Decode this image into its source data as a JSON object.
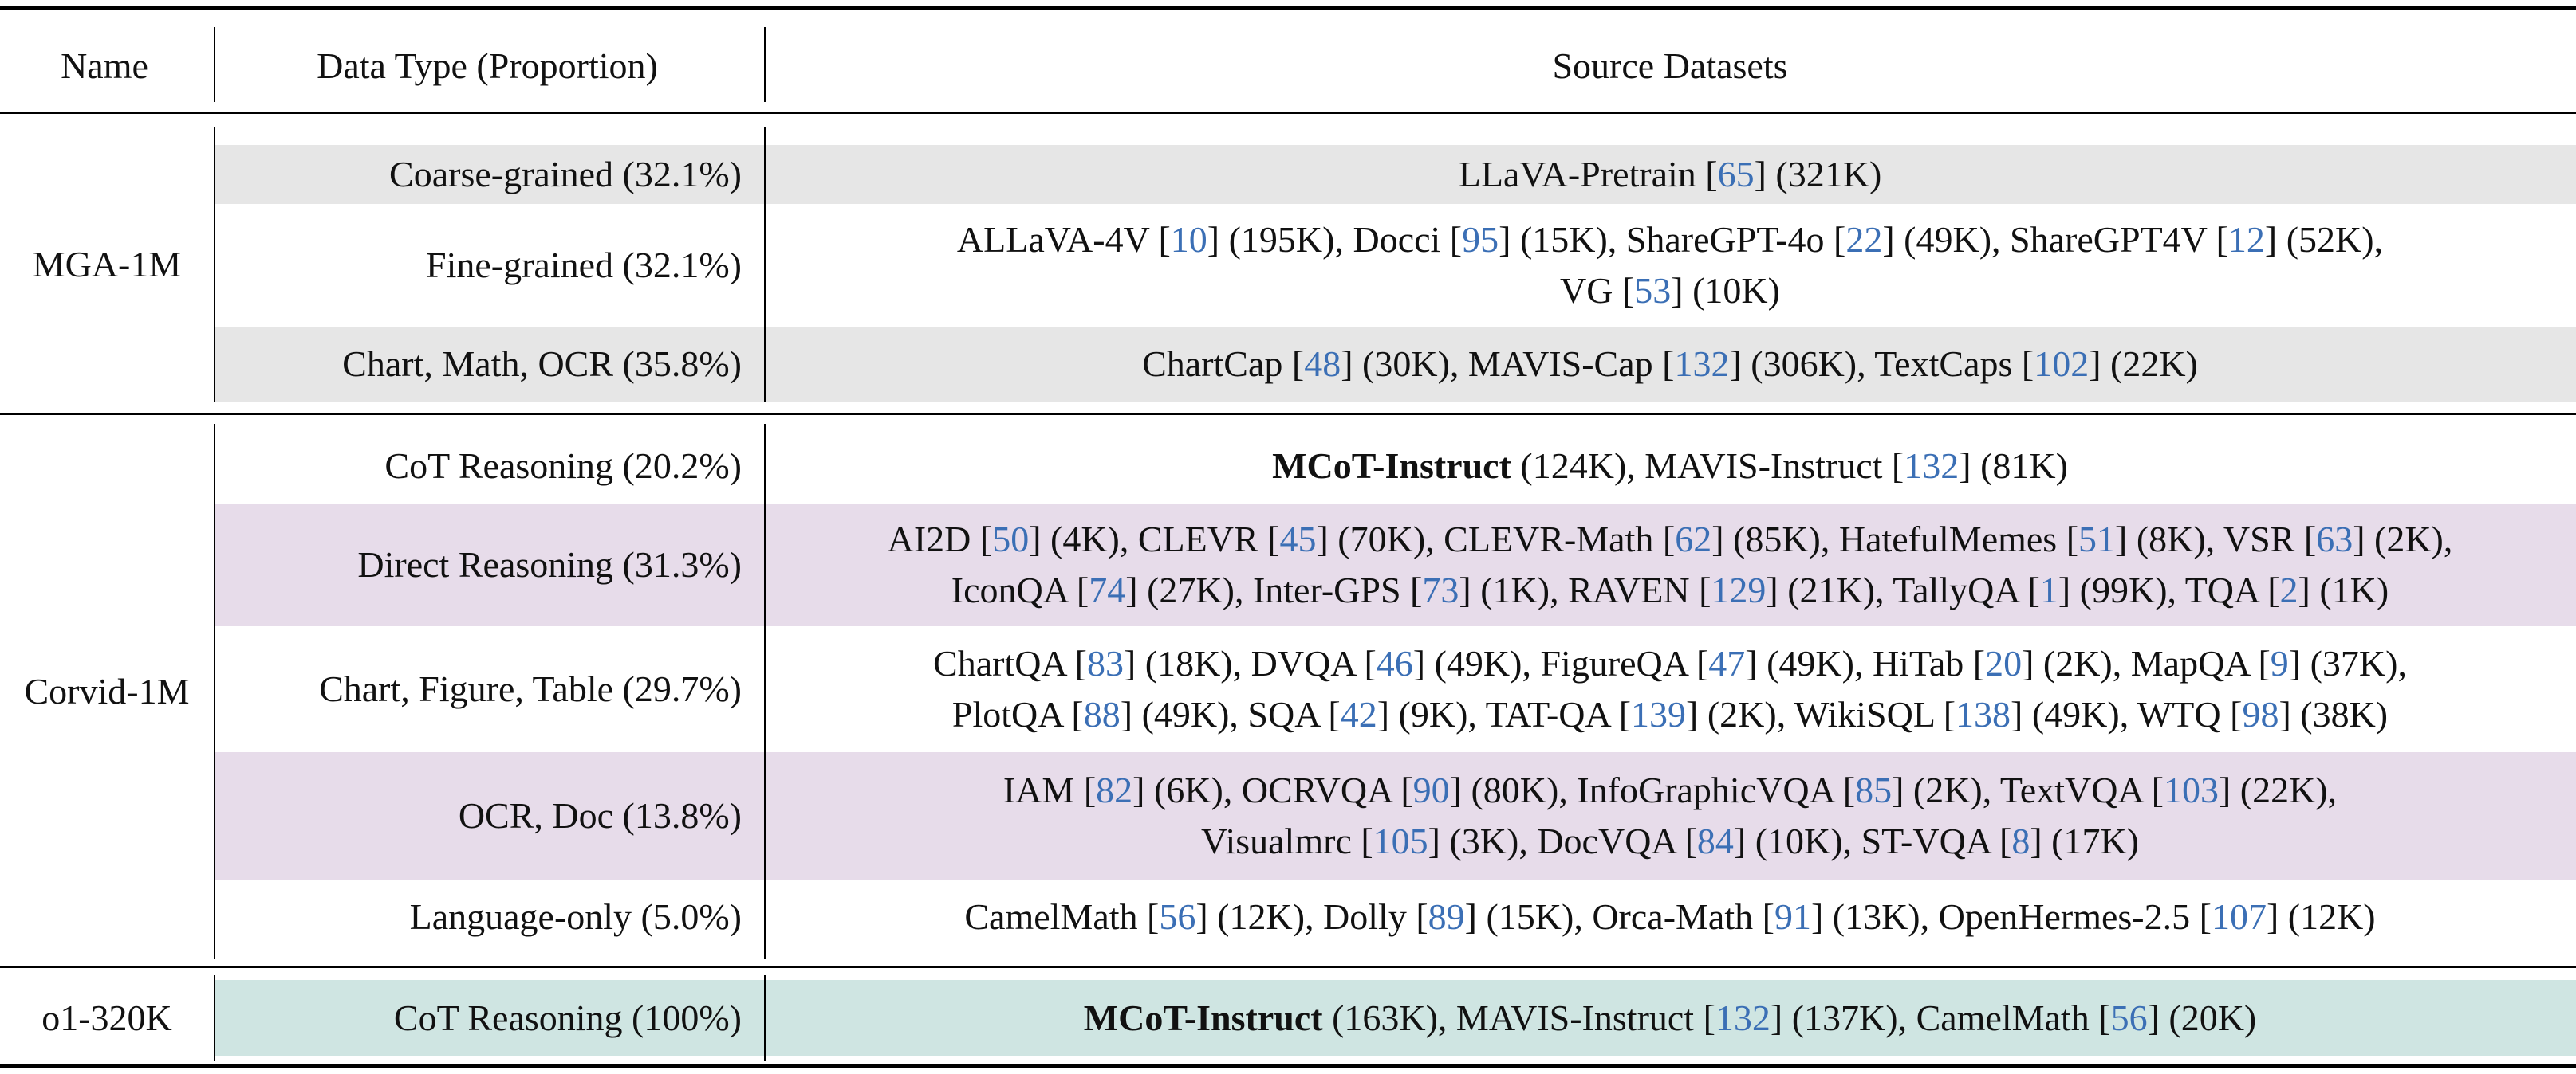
{
  "header": {
    "name": "Name",
    "data_type": "Data Type (Proportion)",
    "source": "Source Datasets"
  },
  "colors": {
    "gray_band": "#e6e6e6",
    "purple_band": "#e7dcea",
    "teal_band": "#cfe5e2",
    "citation": "#3b6fb5"
  },
  "groups": [
    {
      "name": "MGA-1M",
      "rows": [
        {
          "type": "Coarse-grained (32.1%)",
          "band": "gray",
          "lines": [
            [
              {
                "t": "LLaVA-Pretrain ["
              },
              {
                "t": "65",
                "ref": true
              },
              {
                "t": "] (321K)"
              }
            ]
          ]
        },
        {
          "type": "Fine-grained (32.1%)",
          "band": "none",
          "lines": [
            [
              {
                "t": "ALLaVA-4V ["
              },
              {
                "t": "10",
                "ref": true
              },
              {
                "t": "] (195K), Docci ["
              },
              {
                "t": "95",
                "ref": true
              },
              {
                "t": "] (15K), ShareGPT-4o ["
              },
              {
                "t": "22",
                "ref": true
              },
              {
                "t": "] (49K), ShareGPT4V ["
              },
              {
                "t": "12",
                "ref": true
              },
              {
                "t": "] (52K),"
              }
            ],
            [
              {
                "t": "VG ["
              },
              {
                "t": "53",
                "ref": true
              },
              {
                "t": "] (10K)"
              }
            ]
          ]
        },
        {
          "type": "Chart, Math, OCR (35.8%)",
          "band": "gray",
          "lines": [
            [
              {
                "t": "ChartCap ["
              },
              {
                "t": "48",
                "ref": true
              },
              {
                "t": "] (30K), MAVIS-Cap ["
              },
              {
                "t": "132",
                "ref": true
              },
              {
                "t": "] (306K), TextCaps ["
              },
              {
                "t": "102",
                "ref": true
              },
              {
                "t": "] (22K)"
              }
            ]
          ]
        }
      ]
    },
    {
      "name": "Corvid-1M",
      "rows": [
        {
          "type": "CoT Reasoning (20.2%)",
          "band": "none",
          "lines": [
            [
              {
                "t": "MCoT-Instruct",
                "bold": true
              },
              {
                "t": " (124K), MAVIS-Instruct ["
              },
              {
                "t": "132",
                "ref": true
              },
              {
                "t": "] (81K)"
              }
            ]
          ]
        },
        {
          "type": "Direct Reasoning (31.3%)",
          "band": "purple",
          "lines": [
            [
              {
                "t": "AI2D ["
              },
              {
                "t": "50",
                "ref": true
              },
              {
                "t": "] (4K), CLEVR ["
              },
              {
                "t": "45",
                "ref": true
              },
              {
                "t": "] (70K), CLEVR-Math ["
              },
              {
                "t": "62",
                "ref": true
              },
              {
                "t": "] (85K), HatefulMemes ["
              },
              {
                "t": "51",
                "ref": true
              },
              {
                "t": "] (8K), VSR ["
              },
              {
                "t": "63",
                "ref": true
              },
              {
                "t": "] (2K),"
              }
            ],
            [
              {
                "t": "IconQA ["
              },
              {
                "t": "74",
                "ref": true
              },
              {
                "t": "] (27K), Inter-GPS ["
              },
              {
                "t": "73",
                "ref": true
              },
              {
                "t": "] (1K), RAVEN ["
              },
              {
                "t": "129",
                "ref": true
              },
              {
                "t": "] (21K), TallyQA ["
              },
              {
                "t": "1",
                "ref": true
              },
              {
                "t": "] (99K), TQA ["
              },
              {
                "t": "2",
                "ref": true
              },
              {
                "t": "] (1K)"
              }
            ]
          ]
        },
        {
          "type": "Chart, Figure, Table (29.7%)",
          "band": "none",
          "lines": [
            [
              {
                "t": "ChartQA ["
              },
              {
                "t": "83",
                "ref": true
              },
              {
                "t": "] (18K), DVQA ["
              },
              {
                "t": "46",
                "ref": true
              },
              {
                "t": "] (49K), FigureQA ["
              },
              {
                "t": "47",
                "ref": true
              },
              {
                "t": "] (49K), HiTab ["
              },
              {
                "t": "20",
                "ref": true
              },
              {
                "t": "] (2K), MapQA ["
              },
              {
                "t": "9",
                "ref": true
              },
              {
                "t": "] (37K),"
              }
            ],
            [
              {
                "t": "PlotQA ["
              },
              {
                "t": "88",
                "ref": true
              },
              {
                "t": "] (49K), SQA ["
              },
              {
                "t": "42",
                "ref": true
              },
              {
                "t": "] (9K), TAT-QA ["
              },
              {
                "t": "139",
                "ref": true
              },
              {
                "t": "] (2K), WikiSQL ["
              },
              {
                "t": "138",
                "ref": true
              },
              {
                "t": "] (49K), WTQ ["
              },
              {
                "t": "98",
                "ref": true
              },
              {
                "t": "] (38K)"
              }
            ]
          ]
        },
        {
          "type": "OCR, Doc (13.8%)",
          "band": "purple",
          "lines": [
            [
              {
                "t": "IAM ["
              },
              {
                "t": "82",
                "ref": true
              },
              {
                "t": "] (6K), OCRVQA ["
              },
              {
                "t": "90",
                "ref": true
              },
              {
                "t": "] (80K), InfoGraphicVQA ["
              },
              {
                "t": "85",
                "ref": true
              },
              {
                "t": "] (2K), TextVQA ["
              },
              {
                "t": "103",
                "ref": true
              },
              {
                "t": "] (22K),"
              }
            ],
            [
              {
                "t": "Visualmrc ["
              },
              {
                "t": "105",
                "ref": true
              },
              {
                "t": "] (3K), DocVQA ["
              },
              {
                "t": "84",
                "ref": true
              },
              {
                "t": "] (10K), ST-VQA ["
              },
              {
                "t": "8",
                "ref": true
              },
              {
                "t": "] (17K)"
              }
            ]
          ]
        },
        {
          "type": "Language-only (5.0%)",
          "band": "none",
          "lines": [
            [
              {
                "t": "CamelMath ["
              },
              {
                "t": "56",
                "ref": true
              },
              {
                "t": "] (12K), Dolly ["
              },
              {
                "t": "89",
                "ref": true
              },
              {
                "t": "] (15K), Orca-Math ["
              },
              {
                "t": "91",
                "ref": true
              },
              {
                "t": "] (13K), OpenHermes-2.5 ["
              },
              {
                "t": "107",
                "ref": true
              },
              {
                "t": "] (12K)"
              }
            ]
          ]
        }
      ]
    },
    {
      "name": "o1-320K",
      "rows": [
        {
          "type": "CoT Reasoning (100%)",
          "band": "teal",
          "lines": [
            [
              {
                "t": "MCoT-Instruct",
                "bold": true
              },
              {
                "t": " (163K), MAVIS-Instruct ["
              },
              {
                "t": "132",
                "ref": true
              },
              {
                "t": "] (137K), CamelMath ["
              },
              {
                "t": "56",
                "ref": true
              },
              {
                "t": "] (20K)"
              }
            ]
          ]
        }
      ]
    }
  ]
}
